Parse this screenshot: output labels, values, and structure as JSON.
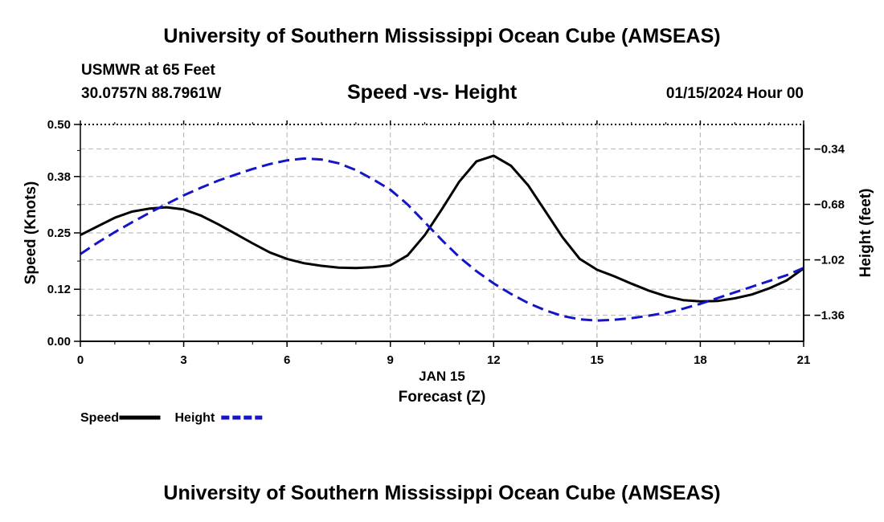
{
  "page": {
    "title_top": "University of Southern Mississippi Ocean Cube (AMSEAS)",
    "title_bottom": "University of Southern Mississippi Ocean Cube (AMSEAS)",
    "station": "USMWR at 65 Feet",
    "coords": "30.0757N  88.7961W",
    "subtitle": "Speed -vs- Height",
    "datetime": "01/15/2024 Hour 00"
  },
  "chart_data": {
    "type": "line",
    "title": "Speed -vs- Height",
    "xlabel_date": "JAN 15",
    "xlabel": "Forecast (Z)",
    "ylabel": "Speed (Knots)",
    "y2label": "Height (feet)",
    "xlim": [
      0,
      21
    ],
    "ylim": [
      0,
      0.5
    ],
    "y2lim": [
      -1.52,
      -0.19
    ],
    "x_ticks": [
      "0",
      "3",
      "6",
      "9",
      "12",
      "15",
      "18",
      "21"
    ],
    "y_ticks": [
      "0.00",
      "0.12",
      "0.25",
      "0.38",
      "0.50"
    ],
    "y2_ticks": [
      "-0.34",
      "-0.68",
      "-1.02",
      "-1.36"
    ],
    "grid": true,
    "legend": [
      {
        "name": "Speed",
        "color": "#000000",
        "dash": false
      },
      {
        "name": "Height",
        "color": "#1414c8",
        "dash": true
      }
    ],
    "series": [
      {
        "name": "Speed",
        "axis": "left",
        "color": "#000000",
        "x": [
          0,
          0.5,
          1,
          1.5,
          2,
          2.5,
          3,
          3.5,
          4,
          4.5,
          5,
          5.5,
          6,
          6.5,
          7,
          7.5,
          8,
          8.5,
          9,
          9.5,
          10,
          10.5,
          11,
          11.5,
          12,
          12.5,
          13,
          13.5,
          14,
          14.5,
          15,
          15.5,
          16,
          16.5,
          17,
          17.5,
          18,
          18.5,
          19,
          19.5,
          20,
          20.5,
          21
        ],
        "values": [
          0.245,
          0.265,
          0.285,
          0.299,
          0.306,
          0.309,
          0.304,
          0.29,
          0.27,
          0.248,
          0.226,
          0.205,
          0.19,
          0.18,
          0.174,
          0.17,
          0.169,
          0.171,
          0.175,
          0.198,
          0.245,
          0.305,
          0.368,
          0.415,
          0.428,
          0.405,
          0.36,
          0.3,
          0.24,
          0.19,
          0.165,
          0.15,
          0.133,
          0.117,
          0.104,
          0.095,
          0.092,
          0.093,
          0.099,
          0.108,
          0.122,
          0.14,
          0.168
        ]
      },
      {
        "name": "Height",
        "axis": "right",
        "color": "#1414c8",
        "x": [
          0,
          0.5,
          1,
          1.5,
          2,
          2.5,
          3,
          3.5,
          4,
          4.5,
          5,
          5.5,
          6,
          6.5,
          7,
          7.5,
          8,
          8.5,
          9,
          9.5,
          10,
          10.5,
          11,
          11.5,
          12,
          12.5,
          13,
          13.5,
          14,
          14.5,
          15,
          15.5,
          16,
          16.5,
          17,
          17.5,
          18,
          18.5,
          19,
          19.5,
          20,
          20.5,
          21
        ],
        "values": [
          -0.985,
          -0.915,
          -0.85,
          -0.79,
          -0.733,
          -0.678,
          -0.625,
          -0.578,
          -0.535,
          -0.498,
          -0.463,
          -0.433,
          -0.41,
          -0.399,
          -0.405,
          -0.428,
          -0.47,
          -0.527,
          -0.59,
          -0.68,
          -0.79,
          -0.9,
          -1.003,
          -1.09,
          -1.165,
          -1.229,
          -1.285,
          -1.33,
          -1.365,
          -1.385,
          -1.393,
          -1.388,
          -1.378,
          -1.363,
          -1.345,
          -1.32,
          -1.29,
          -1.255,
          -1.22,
          -1.185,
          -1.15,
          -1.115,
          -1.07
        ]
      }
    ]
  }
}
